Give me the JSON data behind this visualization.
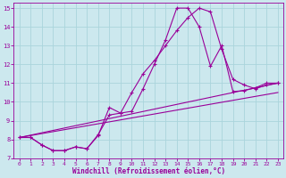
{
  "xlabel": "Windchill (Refroidissement éolien,°C)",
  "bg_color": "#cce8ee",
  "grid_color": "#aad4dc",
  "line_color": "#990099",
  "xlim": [
    -0.5,
    23.5
  ],
  "ylim": [
    7,
    15.3
  ],
  "xticks": [
    0,
    1,
    2,
    3,
    4,
    5,
    6,
    7,
    8,
    9,
    10,
    11,
    12,
    13,
    14,
    15,
    16,
    17,
    18,
    19,
    20,
    21,
    22,
    23
  ],
  "yticks": [
    7,
    8,
    9,
    10,
    11,
    12,
    13,
    14,
    15
  ],
  "line1_x": [
    0,
    1,
    2,
    3,
    4,
    5,
    6,
    7,
    8,
    9,
    10,
    11,
    12,
    13,
    14,
    15,
    16,
    17,
    18,
    19,
    20,
    21,
    22,
    23
  ],
  "line1_y": [
    8.1,
    8.1,
    7.7,
    7.4,
    7.4,
    7.6,
    7.5,
    8.2,
    9.7,
    9.4,
    9.5,
    10.7,
    12.0,
    13.3,
    15.0,
    15.0,
    14.0,
    11.9,
    13.0,
    10.55,
    10.6,
    10.75,
    11.0,
    11.0
  ],
  "line2_x": [
    0,
    1,
    2,
    3,
    4,
    5,
    6,
    7,
    8,
    9,
    10,
    11,
    12,
    13,
    14,
    15,
    16,
    17,
    18,
    19,
    20,
    21,
    22,
    23
  ],
  "line2_y": [
    8.1,
    8.1,
    7.7,
    7.4,
    7.4,
    7.6,
    7.5,
    8.25,
    9.3,
    9.4,
    10.5,
    11.5,
    12.2,
    13.0,
    13.8,
    14.5,
    15.0,
    14.8,
    12.8,
    11.2,
    10.9,
    10.7,
    10.9,
    11.0
  ],
  "line3_x": [
    0,
    23
  ],
  "line3_y": [
    8.1,
    11.0
  ],
  "line4_x": [
    0,
    23
  ],
  "line4_y": [
    8.1,
    10.5
  ]
}
